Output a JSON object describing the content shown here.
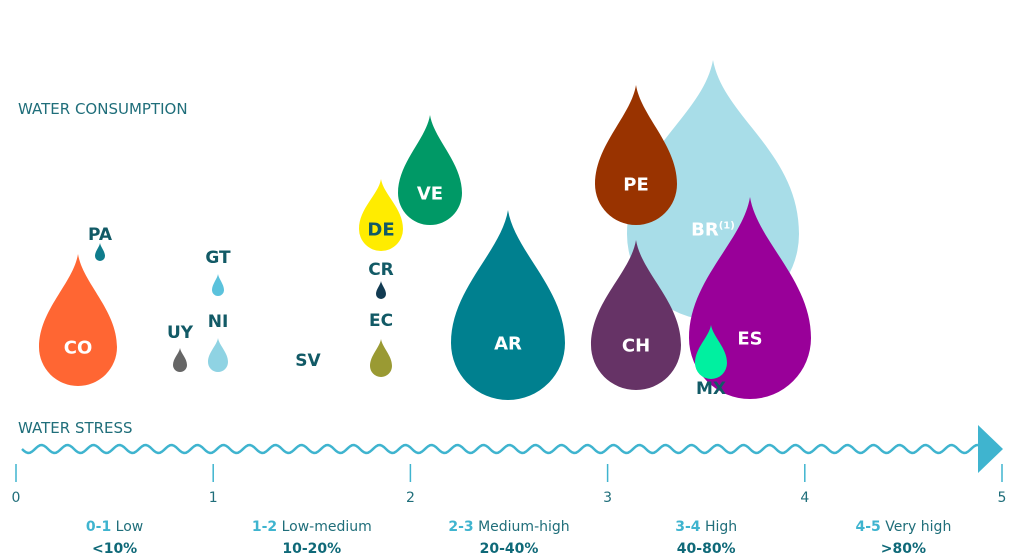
{
  "chart_data": {
    "type": "scatter",
    "title": "",
    "ylabel": "WATER CONSUMPTION",
    "xlabel": "WATER STRESS",
    "xlim": [
      0,
      5
    ],
    "ticks": [
      "0",
      "1",
      "2",
      "3",
      "4",
      "5"
    ],
    "colors": {
      "axis": "#3fb4cf",
      "text": "#1f6e7a"
    },
    "legend": [
      {
        "range": "0-1",
        "label": "Low",
        "pct": "<10%"
      },
      {
        "range": "1-2",
        "label": "Low-medium",
        "pct": "10-20%"
      },
      {
        "range": "2-3",
        "label": "Medium-high",
        "pct": "20-40%"
      },
      {
        "range": "3-4",
        "label": "High",
        "pct": "40-80%"
      },
      {
        "range": "4-5",
        "label": "Very high",
        "pct": ">80%"
      }
    ],
    "points": [
      {
        "code": "CO",
        "x": 0.3,
        "color": "#ff6633",
        "label_color": "#ffffff",
        "label_inside": true
      },
      {
        "code": "PA",
        "x": 0.42,
        "color": "#0f7c8c",
        "label_color": "#125a66",
        "label_inside": false
      },
      {
        "code": "UY",
        "x": 0.83,
        "color": "#666666",
        "label_color": "#125a66",
        "label_inside": false
      },
      {
        "code": "GT",
        "x": 1.03,
        "color": "#5bc2dc",
        "label_color": "#125a66",
        "label_inside": false
      },
      {
        "code": "NI",
        "x": 1.03,
        "color": "#8fd3e3",
        "label_color": "#125a66",
        "label_inside": false
      },
      {
        "code": "SV",
        "x": 1.48,
        "color": "#ffffff",
        "label_color": "#125a66",
        "label_inside": false
      },
      {
        "code": "CR",
        "x": 1.85,
        "color": "#123b52",
        "label_color": "#125a66",
        "label_inside": false
      },
      {
        "code": "EC",
        "x": 1.85,
        "color": "#9a9a33",
        "label_color": "#125a66",
        "label_inside": false
      },
      {
        "code": "DE",
        "x": 1.85,
        "color": "#ffec00",
        "label_color": "#125a66",
        "label_inside": true
      },
      {
        "code": "VE",
        "x": 2.1,
        "color": "#009966",
        "label_color": "#ffffff",
        "label_inside": true
      },
      {
        "code": "AR",
        "x": 2.5,
        "color": "#00808f",
        "label_color": "#ffffff",
        "label_inside": true
      },
      {
        "code": "CH",
        "x": 3.15,
        "color": "#663366",
        "label_color": "#ffffff",
        "label_inside": true
      },
      {
        "code": "PE",
        "x": 3.15,
        "color": "#993300",
        "label_color": "#ffffff",
        "label_inside": true
      },
      {
        "code": "BR",
        "x": 3.5,
        "color": "#a8dde8",
        "label_color": "#ffffff",
        "label_inside": true,
        "note": "(1)"
      },
      {
        "code": "ES",
        "x": 3.75,
        "color": "#990099",
        "label_color": "#ffffff",
        "label_inside": true
      },
      {
        "code": "MX",
        "x": 3.5,
        "color": "#00f0a0",
        "label_color": "#125a66",
        "label_inside": false
      }
    ]
  }
}
